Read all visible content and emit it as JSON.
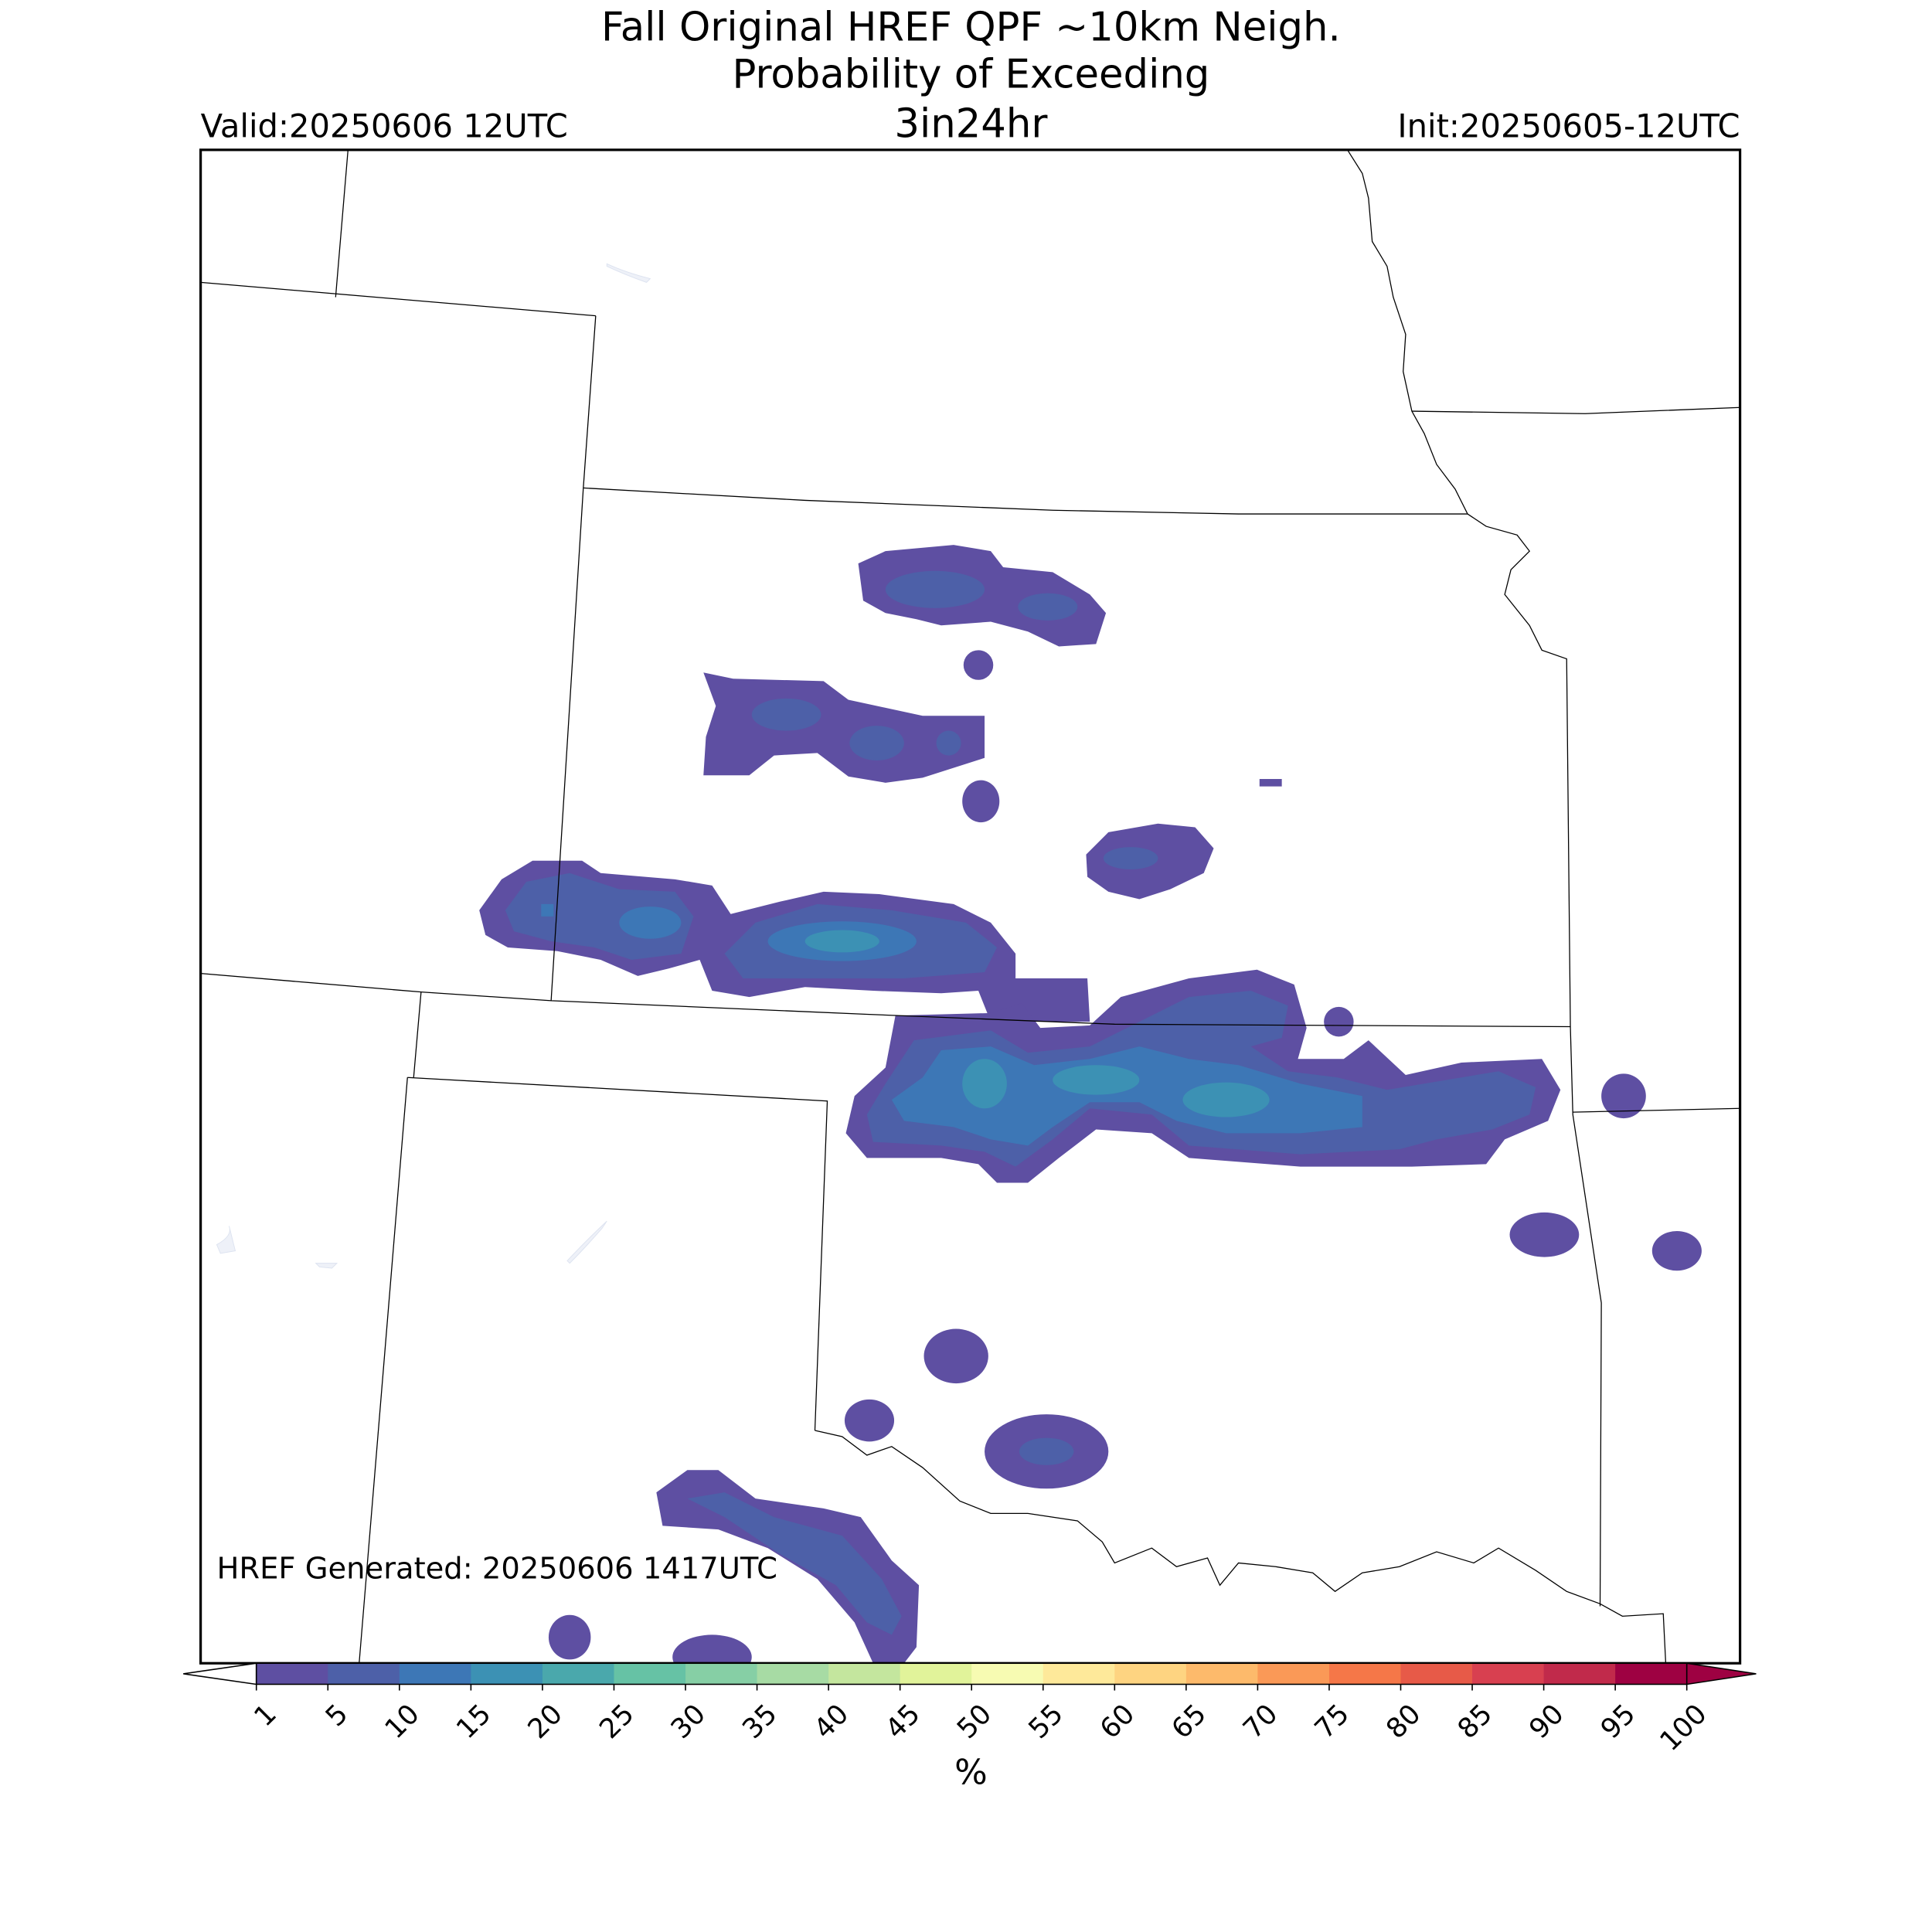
{
  "header": {
    "title_lines": [
      "Fall Original HREF QPF ~10km Neigh.",
      "Probability of Exceeding",
      "3in24hr"
    ],
    "valid": "Valid:20250606 12UTC",
    "init": "Init:20250605-12UTC"
  },
  "footer_note": "HREF Generated: 20250606 1417UTC",
  "colorbar": {
    "label": "%",
    "levels": [
      1,
      5,
      10,
      15,
      20,
      25,
      30,
      35,
      40,
      45,
      50,
      55,
      60,
      65,
      70,
      75,
      80,
      85,
      90,
      95,
      100
    ],
    "colors": [
      "#5e4fa2",
      "#4d60a8",
      "#3d77b6",
      "#3c91b4",
      "#4aa8ac",
      "#66c2a5",
      "#86cfa5",
      "#a7dba4",
      "#c4e69e",
      "#e1f39a",
      "#f7fbb2",
      "#fee99a",
      "#fed481",
      "#fdba6b",
      "#fa9957",
      "#f57748",
      "#e75a48",
      "#d84050",
      "#c12a4b",
      "#9e0142"
    ],
    "extend": "both",
    "under_color": "#ffffff",
    "over_color": "#9e0142"
  }
}
